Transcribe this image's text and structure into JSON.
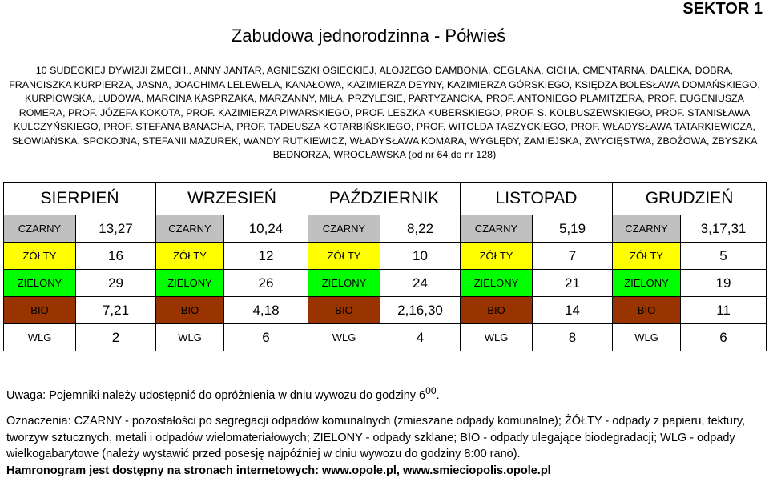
{
  "header": {
    "sector": "SEKTOR 1",
    "title": "Zabudowa jednorodzinna - Półwieś"
  },
  "streets_text": "10 SUDECKIEJ DYWIZJI ZMECH., ANNY JANTAR, AGNIESZKI OSIECKIEJ, ALOJZEGO DAMBONIA, CEGLANA, CICHA, CMENTARNA, DALEKA, DOBRA, FRANCISZKA KURPIERZA, JASNA, JOACHIMA LELEWELA, KANAŁOWA, KAZIMIERZA DEYNY, KAZIMIERZA GÓRSKIEGO, KSIĘDZA BOLESŁAWA DOMAŃSKIEGO, KURPIOWSKA, LUDOWA, MARCINA KASPRZAKA, MARZANNY, MIŁA, PRZYLESIE, PARTYZANCKA, PROF. ANTONIEGO PLAMITZERA, PROF. EUGENIUSZA ROMERA, PROF. JÓZEFA KOKOTA, PROF. KAZIMIERZA PIWARSKIEGO, PROF. LESZKA KUBERSKIEGO, PROF. S. KOLBUSZEWSKIEGO, PROF. STANISŁAWA KULCZYŃSKIEGO, PROF. STEFANA BANACHA, PROF. TADEUSZA KOTARBIŃSKIEGO, PROF. WITOLDA TASZYCKIEGO, PROF. WŁADYSŁAWA TATARKIEWICZA, SŁOWIAŃSKA, SPOKOJNA, STEFANII MAZUREK, WANDY RUTKIEWICZ, WŁADYSŁAWA KOMARA, WYGLĘDY, ZAMIEJSKA, ZWYCIĘSTWA, ZBOŻOWA, ZBYSZKA BEDNORZA, WROCŁAWSKA (od nr 64 do nr 128)",
  "schedule": {
    "months": [
      "SIERPIEŃ",
      "WRZESIEŃ",
      "PAŹDZIERNIK",
      "LISTOPAD",
      "GRUDZIEŃ"
    ],
    "rows": [
      {
        "label": "CZARNY",
        "values": [
          "13,27",
          "10,24",
          "8,22",
          "5,19",
          "3,17,31"
        ]
      },
      {
        "label": "ŻÓŁTY",
        "values": [
          "16",
          "12",
          "10",
          "7",
          "5"
        ]
      },
      {
        "label": "ZIELONY",
        "values": [
          "29",
          "26",
          "24",
          "21",
          "19"
        ]
      },
      {
        "label": "BIO",
        "values": [
          "7,21",
          "4,18",
          "2,16,30",
          "14",
          "11"
        ]
      },
      {
        "label": "WLG",
        "values": [
          "2",
          "6",
          "4",
          "8",
          "6"
        ]
      }
    ],
    "colors": {
      "CZARNY": "#c0c0c0",
      "ŻÓŁTY": "#ffff00",
      "ZIELONY": "#00ff00",
      "BIO": "#993300",
      "WLG": "#ffffff"
    }
  },
  "notes": {
    "uwaga_text": "Uwaga: Pojemniki należy udostępnić do opróżnienia w dniu wywozu do godziny 6",
    "uwaga_superscript": "00",
    "uwaga_end": ".",
    "legend": "Oznaczenia: CZARNY - pozostałości po segregacji odpadów komunalnych (zmieszane odpady komunalne); ŻÓŁTY - odpady z papieru, tektury, tworzyw sztucznych, metali i odpadów wielomateriałowych; ZIELONY - odpady szklane; BIO - odpady ulegające biodegradacji; WLG - odpady wielkogabarytowe (należy wystawić przed posesję najpóźniej w dniu wywozu do godziny 8:00 rano).",
    "footer": "Hamronogram jest dostępny na stronach internetowych: www.opole.pl, www.smieciopolis.opole.pl"
  }
}
